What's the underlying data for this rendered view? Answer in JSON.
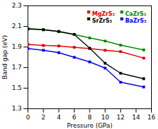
{
  "chart_data": {
    "type": "line",
    "xlabel": "Pressure (GPa)",
    "ylabel": "Band gap (eV)",
    "x": [
      0,
      2,
      4,
      6,
      8,
      10,
      12,
      15
    ],
    "xlim": [
      0,
      16
    ],
    "ylim": [
      1.3,
      2.3
    ],
    "xticks": [
      0,
      2,
      4,
      6,
      8,
      10,
      12,
      14,
      16
    ],
    "yticks": [
      1.3,
      1.5,
      1.7,
      1.9,
      2.1,
      2.3
    ],
    "series": [
      {
        "name": "MgZrS₃",
        "color": "#dd0000",
        "marker": "square",
        "values": [
          1.925,
          1.915,
          1.91,
          1.897,
          1.885,
          1.868,
          1.855,
          1.792
        ]
      },
      {
        "name": "CaZrS₃",
        "color": "#008800",
        "marker": "square",
        "values": [
          2.08,
          2.068,
          2.048,
          2.022,
          1.988,
          1.958,
          1.918,
          1.872
        ]
      },
      {
        "name": "SrZrS₃",
        "color": "#000000",
        "marker": "square",
        "values": [
          2.075,
          2.068,
          2.052,
          2.022,
          1.888,
          1.742,
          1.645,
          1.592
        ]
      },
      {
        "name": "BaZrS₃",
        "color": "#0000ee",
        "marker": "square",
        "values": [
          1.885,
          1.868,
          1.845,
          1.8,
          1.755,
          1.695,
          1.558,
          1.512
        ]
      }
    ],
    "legend": "upper right",
    "grid": false
  }
}
